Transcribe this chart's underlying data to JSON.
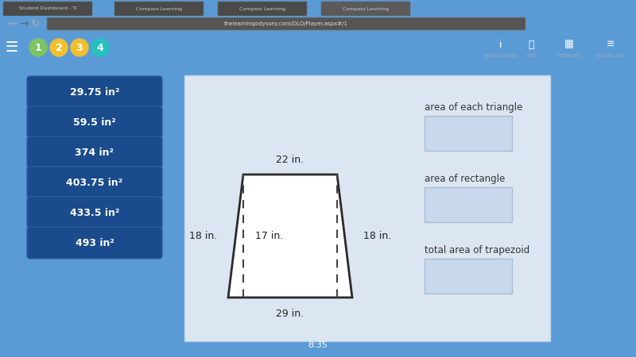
{
  "bg_color": "#5b9bd5",
  "panel_bg": "#dce6f2",
  "toolbar_bg": "#2d2d2d",
  "url_bar_bg": "#3c3c3c",
  "btn_color": "#1a4b8c",
  "btn_text_color": "#ffffff",
  "btn_labels": [
    "29.75 in²",
    "59.5 in²",
    "374 in²",
    "403.75 in²",
    "433.5 in²",
    "493 in²"
  ],
  "trapezoid": {
    "label_top": "22 in.",
    "label_bottom": "29 in.",
    "label_left": "18 in.",
    "label_right": "18 in.",
    "label_height": "17 in."
  },
  "right_labels": [
    "area of each triangle",
    "area of rectangle",
    "total area of trapezoid"
  ],
  "box_color": "#c8d8ed",
  "step_colors": [
    "#7dc462",
    "#f0c030",
    "#f0c030",
    "#25c0c0"
  ],
  "step_labels": [
    "1",
    "2",
    "3",
    "4"
  ],
  "tab_bg": "#e8e8e8",
  "active_tab_bg": "#f0f0f0"
}
